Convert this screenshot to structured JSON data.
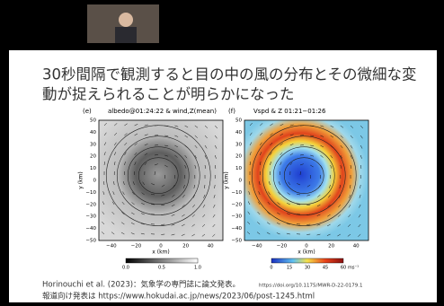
{
  "slide": {
    "title_lines": [
      "30秒間隔で観測すると目の中の風の分布とその微細な変",
      "動が捉えられることが明らかになった"
    ],
    "panels": [
      {
        "label": "(e)",
        "title": "albedo@01:24:22 & wind,Z(mean)",
        "ylabel": "y (km)",
        "xlabel": "x (km)",
        "yticks": [
          "50",
          "40",
          "30",
          "20",
          "10",
          "0",
          "−10",
          "−20",
          "−30",
          "−40",
          "−50"
        ],
        "xticks": [
          "−40",
          "−20",
          "0",
          "20",
          "40"
        ],
        "colorbar_ticks": [
          "0.0",
          "0.5",
          "1.0"
        ]
      },
      {
        "label": "(f)",
        "title": "Vspd & Z  01:21−01:26",
        "ylabel": "y (km)",
        "xlabel": "x (km)",
        "yticks": [
          "50",
          "40",
          "30",
          "20",
          "10",
          "0",
          "−10",
          "−20",
          "−30",
          "−40",
          "−50"
        ],
        "xticks": [
          "−40",
          "−20",
          "0",
          "20",
          "40"
        ],
        "colorbar_ticks": [
          "0",
          "15",
          "30",
          "45",
          "60"
        ],
        "colorbar_unit": "ms⁻¹"
      }
    ],
    "citation": "Horinouchi et al. (2023)：気象学の専門誌に論文発表。",
    "doi": "https://doi.org/10.1175/MWR-D-22-0179.1",
    "press": "報道向け発表は https://www.hokudai.ac.jp/news/2023/06/post-1245.html"
  }
}
